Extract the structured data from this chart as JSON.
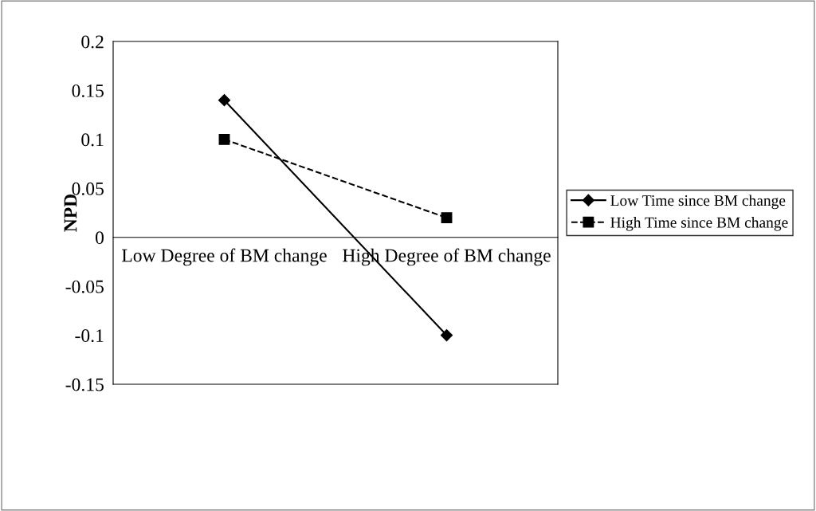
{
  "chart_data": {
    "type": "line",
    "ylabel": "NPD",
    "categories": [
      "Low Degree of BM change",
      "High Degree of BM change"
    ],
    "series": [
      {
        "name": "Low Time since BM change",
        "color": "#000000",
        "values": [
          0.14,
          -0.1
        ],
        "marker": "diamond",
        "line_style": "solid"
      },
      {
        "name": "High Time since BM change",
        "color": "#000000",
        "values": [
          0.1,
          0.02
        ],
        "marker": "square",
        "line_style": "dashed"
      }
    ],
    "ylim": [
      -0.15,
      0.2
    ],
    "yticks": [
      -0.15,
      -0.1,
      -0.05,
      0,
      0.05,
      0.1,
      0.15,
      0.2
    ],
    "grid": false,
    "legend": "right"
  }
}
